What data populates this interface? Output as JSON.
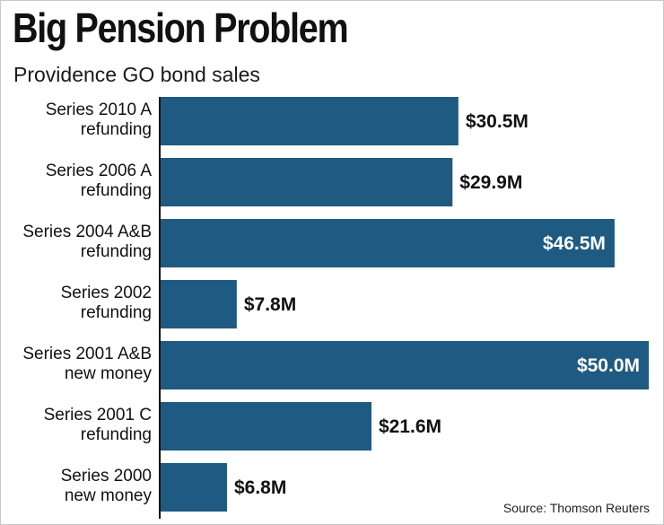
{
  "title": "Big Pension Problem",
  "subtitle": "Providence GO bond sales",
  "source": "Source: Thomson Reuters",
  "colors": {
    "bar": "#1f5a82",
    "label_dark": "#111111",
    "label_light": "#ffffff"
  },
  "chart_data": {
    "type": "bar",
    "orientation": "horizontal",
    "title": "Big Pension Problem",
    "subtitle": "Providence GO bond sales",
    "categories": [
      [
        "Series 2010 A",
        "refunding"
      ],
      [
        "Series 2006 A",
        "refunding"
      ],
      [
        "Series 2004 A&B",
        "refunding"
      ],
      [
        "Series 2002",
        "refunding"
      ],
      [
        "Series 2001 A&B",
        "new money"
      ],
      [
        "Series 2001 C",
        "refunding"
      ],
      [
        "Series 2000",
        "new money"
      ]
    ],
    "values": [
      30.5,
      29.9,
      46.5,
      7.8,
      50.0,
      21.6,
      6.8
    ],
    "value_labels": [
      "$30.5M",
      "$29.9M",
      "$46.5M",
      "$7.8M",
      "$50.0M",
      "$21.6M",
      "$6.8M"
    ],
    "xlim": [
      0,
      50
    ],
    "grid": false,
    "legend": "none"
  }
}
